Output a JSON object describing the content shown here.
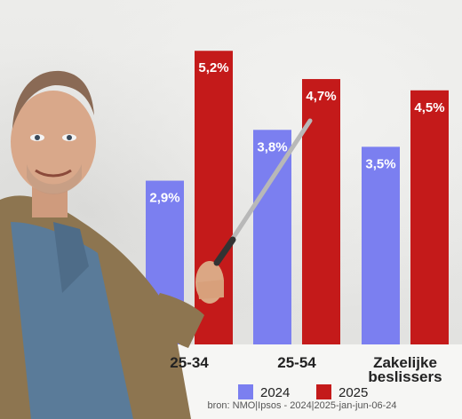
{
  "chart_data": {
    "type": "bar",
    "categories": [
      "25-34",
      "25-54",
      "Zakelijke beslissers"
    ],
    "category_lines": [
      [
        "25-34"
      ],
      [
        "25-54"
      ],
      [
        "Zakelijke",
        "beslissers"
      ]
    ],
    "series": [
      {
        "name": "2024",
        "values": [
          2.9,
          3.8,
          3.5
        ],
        "labels": [
          "2,9%",
          "3,8%",
          "3,5%"
        ],
        "color": "#7b7ff0"
      },
      {
        "name": "2025",
        "values": [
          5.2,
          4.7,
          4.5
        ],
        "labels": [
          "5,2%",
          "4,7%",
          "4,5%"
        ],
        "color": "#c41a1a"
      }
    ],
    "ylim": [
      0,
      6.1
    ],
    "legend_placement": "bottom-center",
    "grid": false,
    "source": "bron: NMO|Ipsos - 2024|2025-jan-jun-06-24"
  }
}
